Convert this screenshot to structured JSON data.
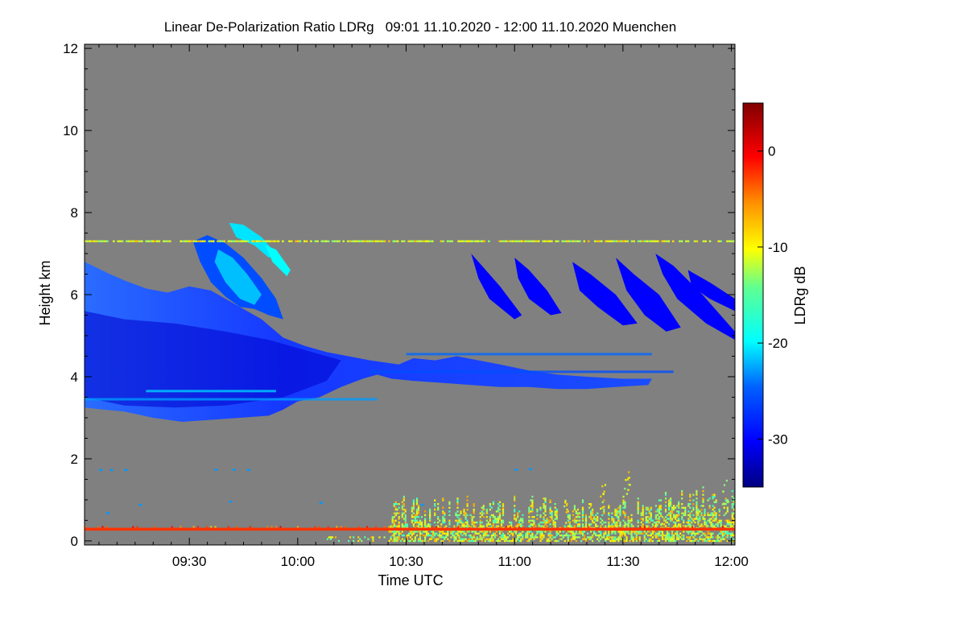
{
  "chart_data": {
    "type": "heatmap",
    "title": "Linear De-Polarization Ratio LDRg   09:01 11.10.2020 - 12:00 11.10.2020 Muenchen",
    "xlabel": "Time UTC",
    "ylabel": "Height km",
    "x_tick_labels": [
      "09:30",
      "10:00",
      "10:30",
      "11:00",
      "11:30",
      "12:00"
    ],
    "x_tick_minutes": [
      570,
      600,
      630,
      660,
      690,
      720
    ],
    "xlim_minutes": [
      541,
      721
    ],
    "xlim_labels": [
      "09:01",
      "12:00"
    ],
    "ylim": [
      -0.1,
      12.1
    ],
    "y_ticks": [
      0,
      2,
      4,
      6,
      8,
      10,
      12
    ],
    "colorbar": {
      "label": "LDRg dB",
      "range": [
        -35,
        5
      ],
      "ticks": [
        -30,
        -20,
        -10,
        0
      ],
      "colormap": "jet"
    },
    "no_data_color": "#808080",
    "features": [
      {
        "name": "mid-level cloud",
        "t_start": 541,
        "t_end": 698,
        "h_bottom": 2.9,
        "h_top": 6.8,
        "ldr_typical": -30
      },
      {
        "name": "cirrus fall streaks",
        "t_start": 572,
        "t_end": 590,
        "h_bottom": 5.5,
        "h_top": 7.8,
        "ldr_typical": -22
      },
      {
        "name": "upper cloud streaks",
        "t_start": 645,
        "t_end": 721,
        "h_bottom": 4.9,
        "h_top": 7.0,
        "ldr_typical": -30
      },
      {
        "name": "horizontal artifact line",
        "t_start": 541,
        "t_end": 721,
        "h_bottom": 7.28,
        "h_top": 7.32,
        "ldr_typical": -12
      },
      {
        "name": "boundary layer aerosol",
        "t_start": 625,
        "t_end": 721,
        "h_bottom": 0.0,
        "h_top": 1.6,
        "ldr_typical": -12
      },
      {
        "name": "near-surface layer",
        "t_start": 541,
        "t_end": 721,
        "h_bottom": 0.25,
        "h_top": 0.32,
        "ldr_typical": -2
      }
    ]
  }
}
